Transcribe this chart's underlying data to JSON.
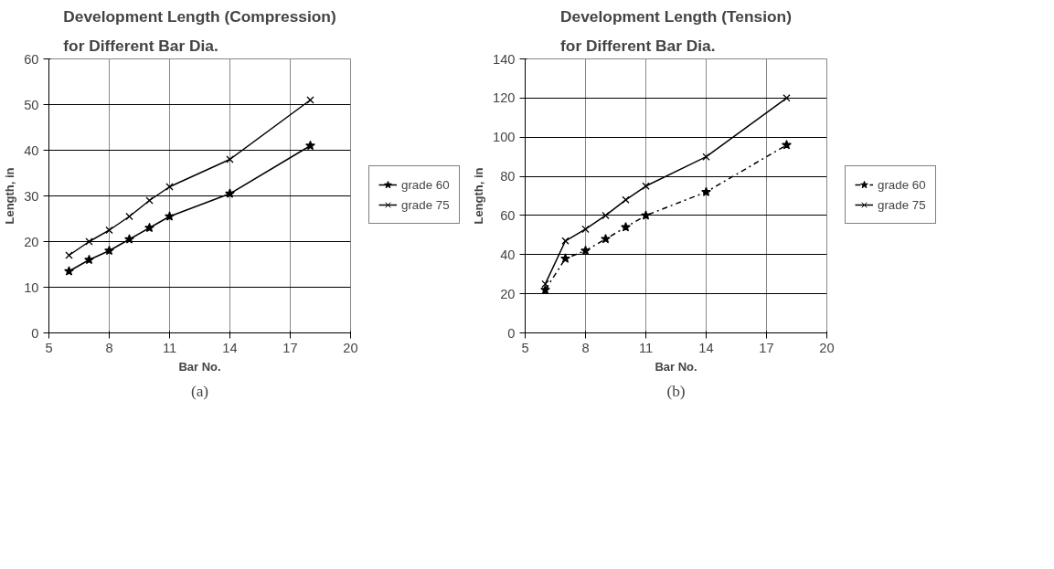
{
  "chart_data": [
    {
      "type": "line",
      "title": "Development Length (Compression)\nfor Different Bar Dia.",
      "xlabel": "Bar No.",
      "ylabel": "Length, in",
      "xlim": [
        5,
        20
      ],
      "xticks": [
        5,
        8,
        11,
        14,
        17,
        20
      ],
      "ylim": [
        0,
        60
      ],
      "yticks": [
        0,
        10,
        20,
        30,
        40,
        50,
        60
      ],
      "grid": true,
      "legend": "right",
      "annotations": [
        "(a)"
      ],
      "series": [
        {
          "name": "grade 60",
          "color": "#000000",
          "marker": "star",
          "line_style": "solid",
          "x": [
            6,
            7,
            8,
            9,
            10,
            11,
            14,
            18
          ],
          "values": [
            13.5,
            16,
            18,
            20.5,
            23,
            25.5,
            30.5,
            41
          ]
        },
        {
          "name": "grade 75",
          "color": "#000000",
          "marker": "cross",
          "line_style": "solid",
          "x": [
            6,
            7,
            8,
            9,
            10,
            11,
            14,
            18
          ],
          "values": [
            17,
            20,
            22.5,
            25.5,
            29,
            32,
            38,
            51
          ]
        }
      ]
    },
    {
      "type": "line",
      "title": "Development Length (Tension)\nfor Different Bar Dia.",
      "xlabel": "Bar No.",
      "ylabel": "Length, in",
      "xlim": [
        5,
        20
      ],
      "xticks": [
        5,
        8,
        11,
        14,
        17,
        20
      ],
      "ylim": [
        0,
        140
      ],
      "yticks": [
        0,
        20,
        40,
        60,
        80,
        100,
        120,
        140
      ],
      "grid": true,
      "legend": "right",
      "annotations": [
        "(b)"
      ],
      "series": [
        {
          "name": "grade 60",
          "color": "#000000",
          "marker": "star",
          "line_style": "dashdot",
          "x": [
            6,
            7,
            8,
            9,
            10,
            11,
            14,
            18
          ],
          "values": [
            22,
            38,
            42,
            48,
            54,
            60,
            72,
            96
          ]
        },
        {
          "name": "grade 75",
          "color": "#000000",
          "marker": "cross",
          "line_style": "solid",
          "x": [
            6,
            7,
            8,
            9,
            10,
            11,
            14,
            18
          ],
          "values": [
            25,
            47,
            53,
            60,
            68,
            75,
            90,
            120
          ]
        }
      ]
    }
  ]
}
